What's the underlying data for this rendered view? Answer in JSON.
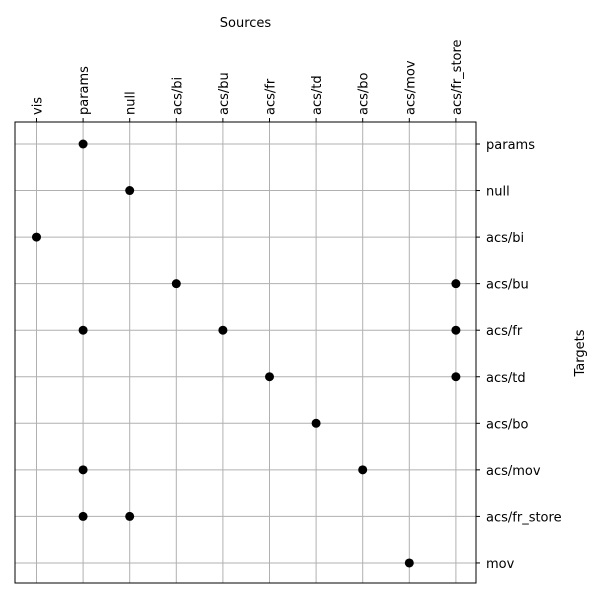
{
  "chart_data": {
    "type": "scatter",
    "title": "",
    "xlabel": "Sources",
    "ylabel": "Targets",
    "x_categories": [
      "vis",
      "params",
      "null",
      "acs/bi",
      "acs/bu",
      "acs/fr",
      "acs/td",
      "acs/bo",
      "acs/mov",
      "acs/fr_store"
    ],
    "y_categories": [
      "params",
      "null",
      "acs/bi",
      "acs/bu",
      "acs/fr",
      "acs/td",
      "acs/bo",
      "acs/mov",
      "acs/fr_store",
      "mov"
    ],
    "points": [
      {
        "x": "params",
        "y": "params"
      },
      {
        "x": "null",
        "y": "null"
      },
      {
        "x": "vis",
        "y": "acs/bi"
      },
      {
        "x": "acs/bi",
        "y": "acs/bu"
      },
      {
        "x": "acs/fr_store",
        "y": "acs/bu"
      },
      {
        "x": "params",
        "y": "acs/fr"
      },
      {
        "x": "acs/bu",
        "y": "acs/fr"
      },
      {
        "x": "acs/fr_store",
        "y": "acs/fr"
      },
      {
        "x": "acs/fr",
        "y": "acs/td"
      },
      {
        "x": "acs/fr_store",
        "y": "acs/td"
      },
      {
        "x": "acs/td",
        "y": "acs/bo"
      },
      {
        "x": "params",
        "y": "acs/mov"
      },
      {
        "x": "acs/bo",
        "y": "acs/mov"
      },
      {
        "x": "params",
        "y": "acs/fr_store"
      },
      {
        "x": "null",
        "y": "acs/fr_store"
      },
      {
        "x": "acs/mov",
        "y": "mov"
      }
    ],
    "x_axis_position": "top",
    "y_axis_position": "right",
    "grid": true,
    "marker_color": "#000000",
    "grid_color": "#b0b0b0"
  }
}
